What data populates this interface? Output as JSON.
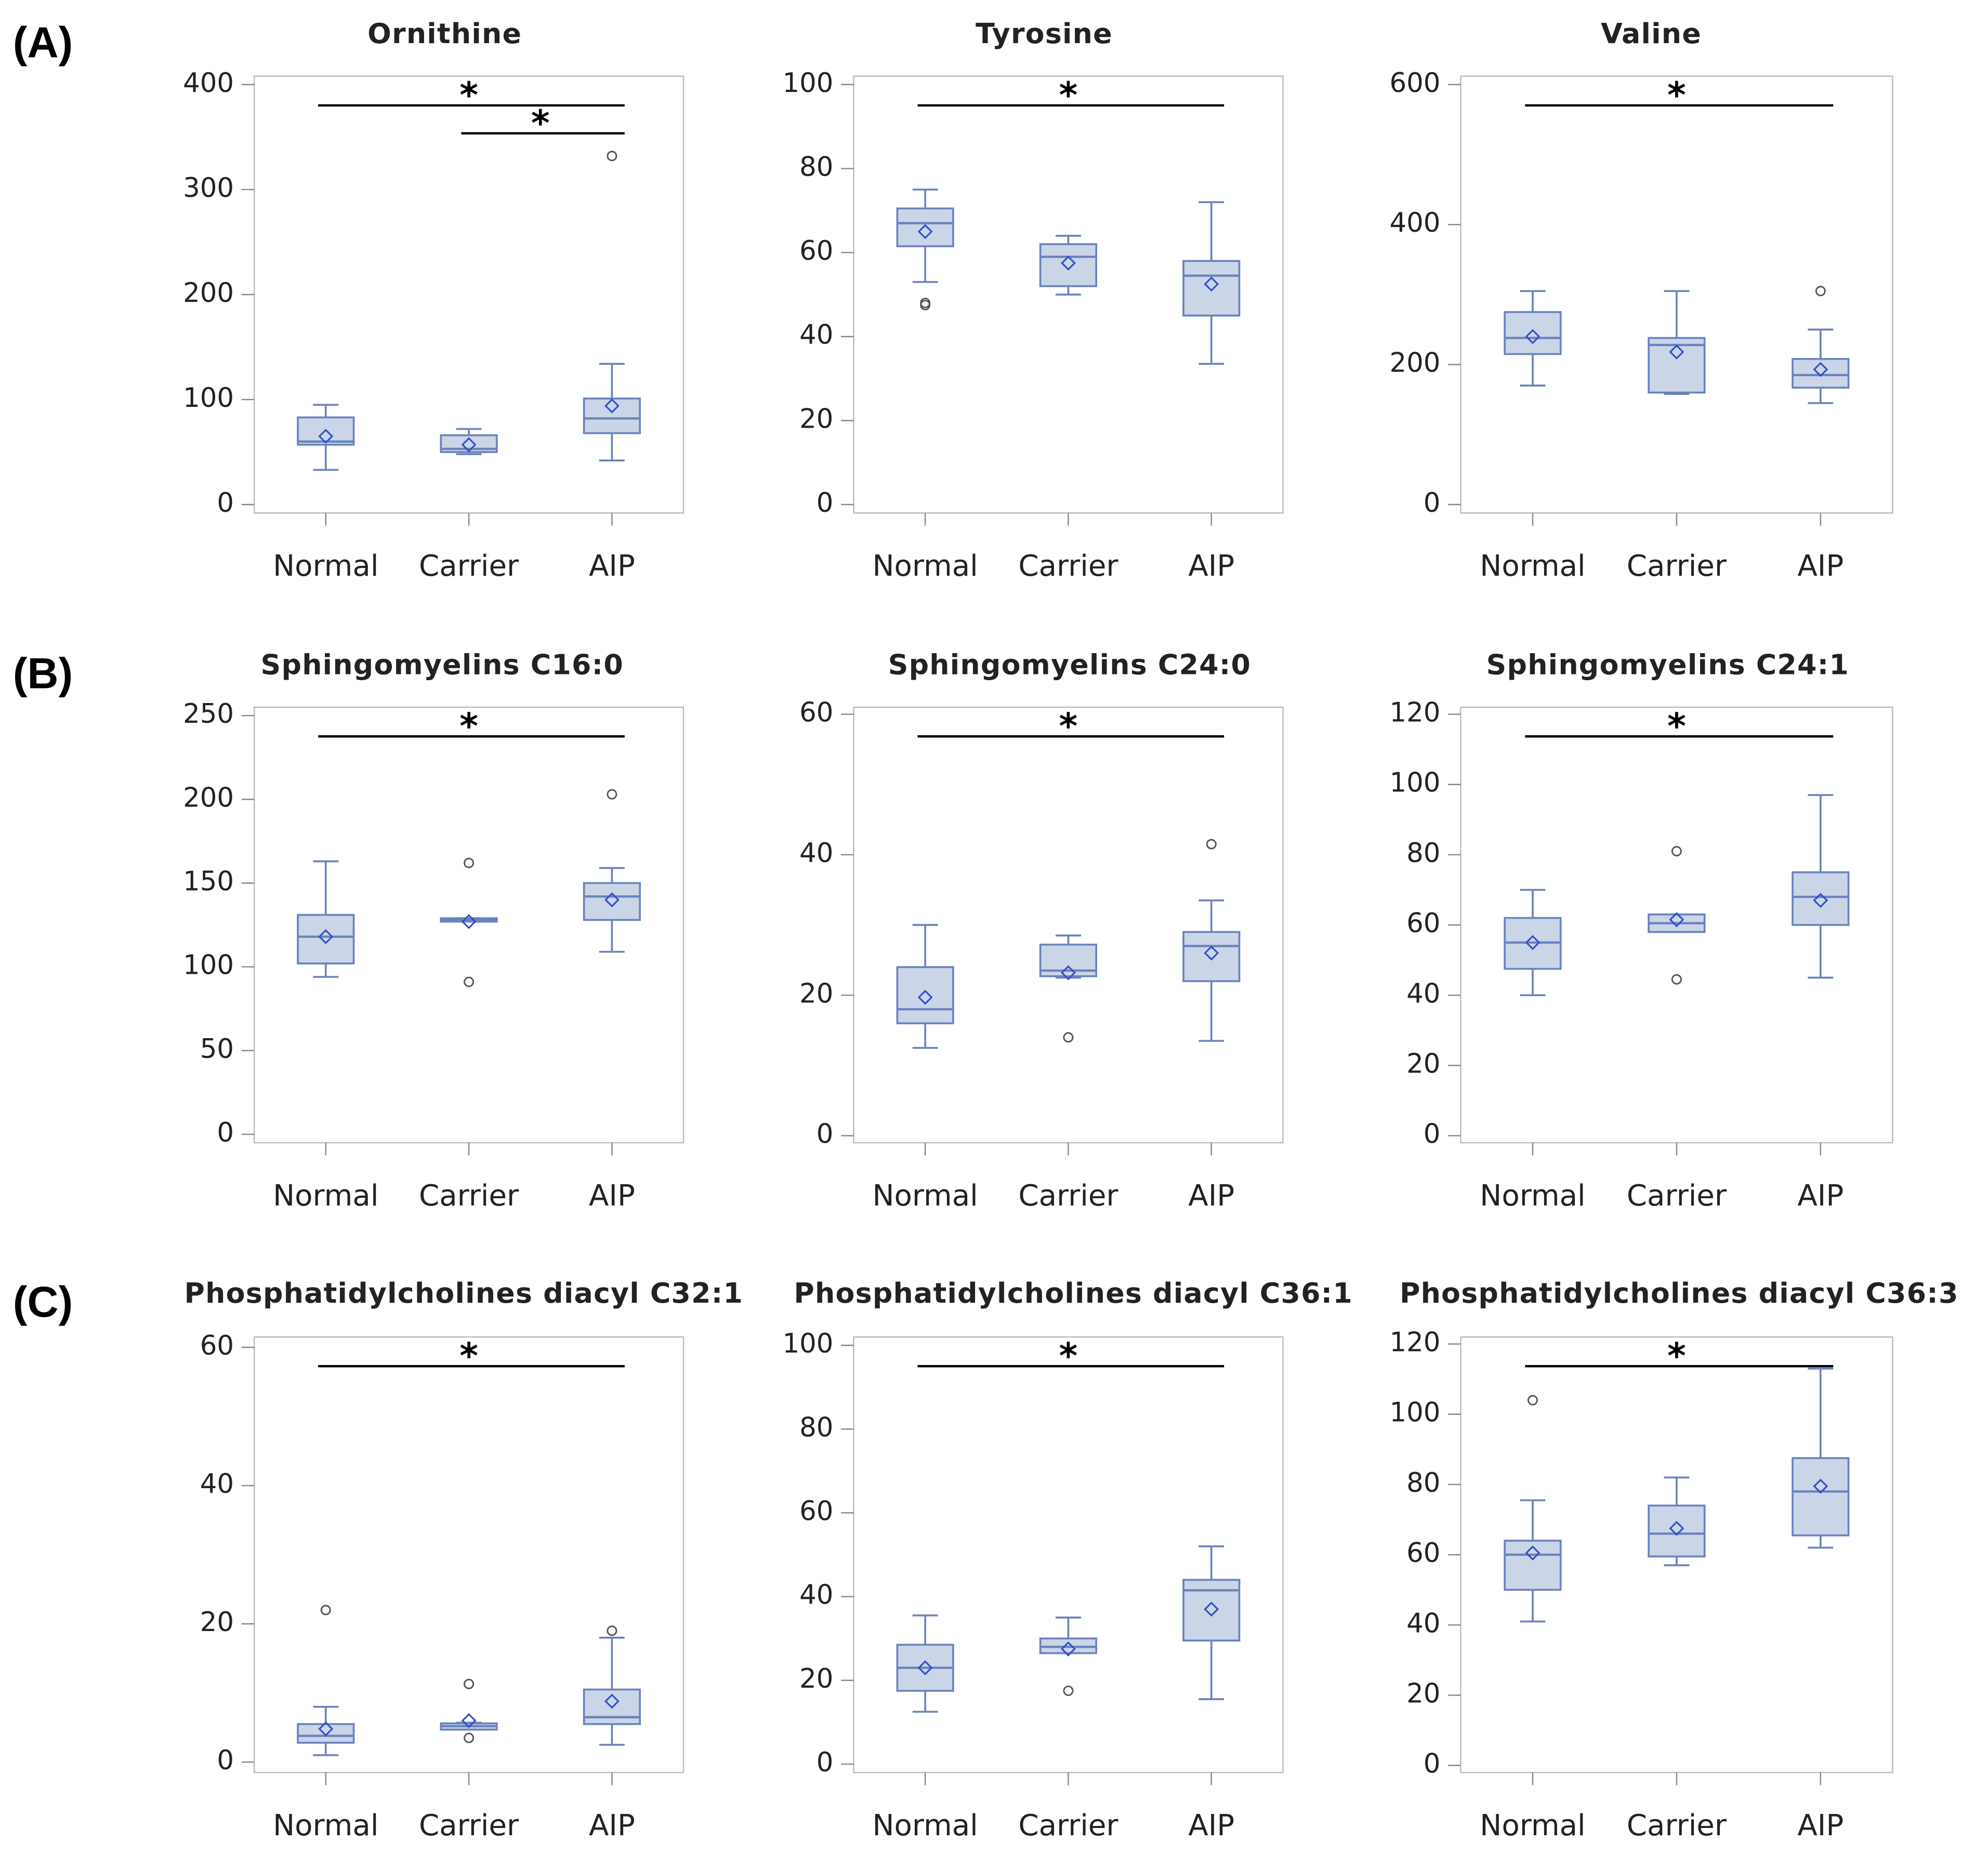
{
  "chart_data": [
    {
      "type": "box",
      "panel_label": "(A)",
      "title": "Ornithine",
      "categories": [
        "Normal",
        "Carrier",
        "AIP"
      ],
      "color": "#6a83bd",
      "fill": "#cbd5e8",
      "boxes": [
        {
          "min": 33,
          "q1": 57,
          "median": 60,
          "q3": 83,
          "max": 95,
          "mean": 65,
          "outliers": []
        },
        {
          "min": 48,
          "q1": 50,
          "median": 53,
          "q3": 66,
          "max": 72,
          "mean": 57,
          "outliers": []
        },
        {
          "min": 42,
          "q1": 68,
          "median": 82,
          "q3": 101,
          "max": 134,
          "mean": 94,
          "outliers": [
            332
          ]
        }
      ],
      "ylim": [
        -8,
        408
      ],
      "yticks": [
        0,
        100,
        200,
        300,
        400
      ],
      "significance": [
        {
          "between": [
            "Normal",
            "AIP"
          ],
          "label": "*"
        },
        {
          "between": [
            "Carrier",
            "AIP"
          ],
          "label": "*"
        }
      ]
    },
    {
      "type": "box",
      "title": "Tyrosine",
      "categories": [
        "Normal",
        "Carrier",
        "AIP"
      ],
      "color": "#6a83bd",
      "fill": "#cbd5e8",
      "boxes": [
        {
          "min": 53,
          "q1": 61.5,
          "median": 67,
          "q3": 70.5,
          "max": 75,
          "mean": 65,
          "outliers": [
            47.5,
            48
          ]
        },
        {
          "min": 50,
          "q1": 52,
          "median": 59,
          "q3": 62,
          "max": 64,
          "mean": 57.5,
          "outliers": []
        },
        {
          "min": 33.5,
          "q1": 45,
          "median": 54.5,
          "q3": 58,
          "max": 72,
          "mean": 52.5,
          "outliers": []
        }
      ],
      "ylim": [
        -2,
        102
      ],
      "yticks": [
        0,
        20,
        40,
        60,
        80,
        100
      ],
      "significance": [
        {
          "between": [
            "Normal",
            "AIP"
          ],
          "label": "*"
        }
      ]
    },
    {
      "type": "box",
      "title": "Valine",
      "categories": [
        "Normal",
        "Carrier",
        "AIP"
      ],
      "color": "#6a83bd",
      "fill": "#cbd5e8",
      "boxes": [
        {
          "min": 170,
          "q1": 215,
          "median": 238,
          "q3": 275,
          "max": 305,
          "mean": 240,
          "outliers": []
        },
        {
          "min": 158,
          "q1": 160,
          "median": 228,
          "q3": 238,
          "max": 305,
          "mean": 218,
          "outliers": []
        },
        {
          "min": 145,
          "q1": 167,
          "median": 185,
          "q3": 208,
          "max": 250,
          "mean": 193,
          "outliers": [
            305
          ]
        }
      ],
      "ylim": [
        -12,
        612
      ],
      "yticks": [
        0,
        200,
        400,
        600
      ],
      "significance": [
        {
          "between": [
            "Normal",
            "AIP"
          ],
          "label": "*"
        }
      ]
    },
    {
      "type": "box",
      "panel_label": "(B)",
      "title": "Sphingomyelins C16:0",
      "categories": [
        "Normal",
        "Carrier",
        "AIP"
      ],
      "color": "#6a83bd",
      "fill": "#cbd5e8",
      "boxes": [
        {
          "min": 94,
          "q1": 102,
          "median": 118,
          "q3": 131,
          "max": 163,
          "mean": 118,
          "outliers": []
        },
        {
          "min": 127,
          "q1": 127,
          "median": 128,
          "q3": 129,
          "max": 129,
          "mean": 127,
          "outliers": [
            91,
            162
          ]
        },
        {
          "min": 109,
          "q1": 128,
          "median": 142,
          "q3": 150,
          "max": 159,
          "mean": 140,
          "outliers": [
            203
          ]
        }
      ],
      "ylim": [
        -5,
        255
      ],
      "yticks": [
        0,
        50,
        100,
        150,
        200,
        250
      ],
      "significance": [
        {
          "between": [
            "Normal",
            "AIP"
          ],
          "label": "*"
        }
      ]
    },
    {
      "type": "box",
      "title": "Sphingomyelins C24:0",
      "categories": [
        "Normal",
        "Carrier",
        "AIP"
      ],
      "color": "#6a83bd",
      "fill": "#cbd5e8",
      "boxes": [
        {
          "min": 12.5,
          "q1": 16,
          "median": 18,
          "q3": 24,
          "max": 30,
          "mean": 19.7,
          "outliers": []
        },
        {
          "min": 22.5,
          "q1": 22.7,
          "median": 23.5,
          "q3": 27.2,
          "max": 28.5,
          "mean": 23.2,
          "outliers": [
            14
          ]
        },
        {
          "min": 13.5,
          "q1": 22,
          "median": 27,
          "q3": 29,
          "max": 33.5,
          "mean": 26,
          "outliers": [
            41.5
          ]
        }
      ],
      "ylim": [
        -1,
        61
      ],
      "yticks": [
        0,
        20,
        40,
        60
      ],
      "significance": [
        {
          "between": [
            "Normal",
            "AIP"
          ],
          "label": "*"
        }
      ]
    },
    {
      "type": "box",
      "title": "Sphingomyelins C24:1",
      "categories": [
        "Normal",
        "Carrier",
        "AIP"
      ],
      "color": "#6a83bd",
      "fill": "#cbd5e8",
      "boxes": [
        {
          "min": 40,
          "q1": 47.5,
          "median": 55,
          "q3": 62,
          "max": 70,
          "mean": 55,
          "outliers": []
        },
        {
          "min": 58,
          "q1": 58,
          "median": 60.5,
          "q3": 63,
          "max": 63,
          "mean": 61.5,
          "outliers": [
            44.5,
            81
          ]
        },
        {
          "min": 45,
          "q1": 60,
          "median": 68,
          "q3": 75,
          "max": 97,
          "mean": 67,
          "outliers": []
        }
      ],
      "ylim": [
        -2,
        122
      ],
      "yticks": [
        0,
        20,
        40,
        60,
        80,
        100,
        120
      ],
      "significance": [
        {
          "between": [
            "Normal",
            "AIP"
          ],
          "label": "*"
        }
      ]
    },
    {
      "type": "box",
      "panel_label": "(C)",
      "title": "Phosphatidylcholines diacyl C32:1",
      "categories": [
        "Normal",
        "Carrier",
        "AIP"
      ],
      "color": "#6a83bd",
      "fill": "#cbd5e8",
      "boxes": [
        {
          "min": 1,
          "q1": 2.8,
          "median": 3.8,
          "q3": 5.5,
          "max": 8,
          "mean": 4.8,
          "outliers": [
            22
          ]
        },
        {
          "min": 4.7,
          "q1": 4.7,
          "median": 5.2,
          "q3": 5.6,
          "max": 5.7,
          "mean": 6,
          "outliers": [
            3.5,
            11.3
          ]
        },
        {
          "min": 2.5,
          "q1": 5.5,
          "median": 6.5,
          "q3": 10.5,
          "max": 18,
          "mean": 8.8,
          "outliers": [
            19
          ]
        }
      ],
      "ylim": [
        -1.5,
        61.5
      ],
      "yticks": [
        0,
        20,
        40,
        60
      ],
      "significance": [
        {
          "between": [
            "Normal",
            "AIP"
          ],
          "label": "*"
        }
      ]
    },
    {
      "type": "box",
      "title": "Phosphatidylcholines diacyl C36:1",
      "categories": [
        "Normal",
        "Carrier",
        "AIP"
      ],
      "color": "#6a83bd",
      "fill": "#cbd5e8",
      "boxes": [
        {
          "min": 12.5,
          "q1": 17.5,
          "median": 23,
          "q3": 28.5,
          "max": 35.5,
          "mean": 23,
          "outliers": []
        },
        {
          "min": 26.5,
          "q1": 26.5,
          "median": 28,
          "q3": 30,
          "max": 35,
          "mean": 27.5,
          "outliers": [
            17.5
          ]
        },
        {
          "min": 15.5,
          "q1": 29.5,
          "median": 41.5,
          "q3": 44,
          "max": 52,
          "mean": 37,
          "outliers": []
        }
      ],
      "ylim": [
        -2,
        102
      ],
      "yticks": [
        0,
        20,
        40,
        60,
        80,
        100
      ],
      "significance": [
        {
          "between": [
            "Normal",
            "AIP"
          ],
          "label": "*"
        }
      ]
    },
    {
      "type": "box",
      "title": "Phosphatidylcholines diacyl C36:3",
      "categories": [
        "Normal",
        "Carrier",
        "AIP"
      ],
      "color": "#6a83bd",
      "fill": "#cbd5e8",
      "boxes": [
        {
          "min": 41,
          "q1": 50,
          "median": 60,
          "q3": 64,
          "max": 75.5,
          "mean": 60.5,
          "outliers": [
            104
          ]
        },
        {
          "min": 57,
          "q1": 59.5,
          "median": 66,
          "q3": 74,
          "max": 82,
          "mean": 67.5,
          "outliers": []
        },
        {
          "min": 62,
          "q1": 65.5,
          "median": 78,
          "q3": 87.5,
          "max": 113,
          "mean": 79.5,
          "outliers": []
        }
      ],
      "ylim": [
        -2,
        122
      ],
      "yticks": [
        0,
        20,
        40,
        60,
        80,
        100,
        120
      ],
      "significance": [
        {
          "between": [
            "Normal",
            "AIP"
          ],
          "label": "*"
        }
      ]
    }
  ]
}
